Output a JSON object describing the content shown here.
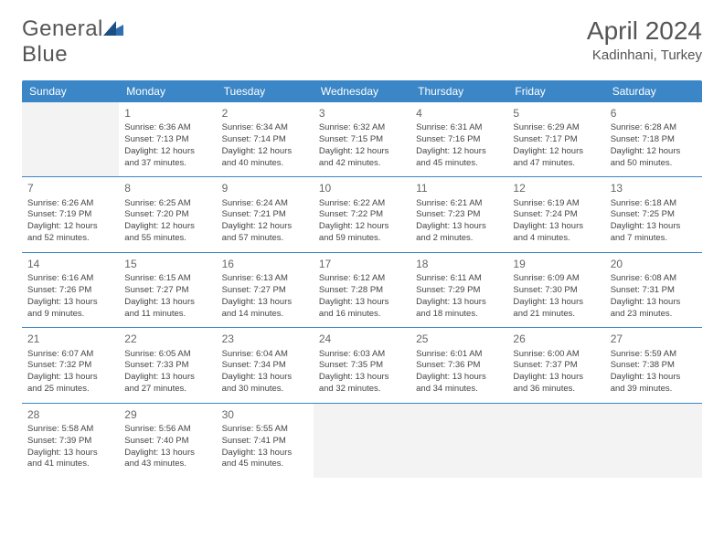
{
  "logo": {
    "text_a": "General",
    "text_b": "Blue",
    "mark_color": "#2f6fb0"
  },
  "title": "April 2024",
  "location": "Kadinhani, Turkey",
  "colors": {
    "header_bg": "#3b86c6",
    "header_text": "#ffffff",
    "rule": "#3b86c6",
    "empty_bg": "#f3f3f3",
    "body_text": "#444444",
    "title_text": "#555555"
  },
  "day_headers": [
    "Sunday",
    "Monday",
    "Tuesday",
    "Wednesday",
    "Thursday",
    "Friday",
    "Saturday"
  ],
  "weeks": [
    [
      null,
      {
        "n": "1",
        "sr": "Sunrise: 6:36 AM",
        "ss": "Sunset: 7:13 PM",
        "d1": "Daylight: 12 hours",
        "d2": "and 37 minutes."
      },
      {
        "n": "2",
        "sr": "Sunrise: 6:34 AM",
        "ss": "Sunset: 7:14 PM",
        "d1": "Daylight: 12 hours",
        "d2": "and 40 minutes."
      },
      {
        "n": "3",
        "sr": "Sunrise: 6:32 AM",
        "ss": "Sunset: 7:15 PM",
        "d1": "Daylight: 12 hours",
        "d2": "and 42 minutes."
      },
      {
        "n": "4",
        "sr": "Sunrise: 6:31 AM",
        "ss": "Sunset: 7:16 PM",
        "d1": "Daylight: 12 hours",
        "d2": "and 45 minutes."
      },
      {
        "n": "5",
        "sr": "Sunrise: 6:29 AM",
        "ss": "Sunset: 7:17 PM",
        "d1": "Daylight: 12 hours",
        "d2": "and 47 minutes."
      },
      {
        "n": "6",
        "sr": "Sunrise: 6:28 AM",
        "ss": "Sunset: 7:18 PM",
        "d1": "Daylight: 12 hours",
        "d2": "and 50 minutes."
      }
    ],
    [
      {
        "n": "7",
        "sr": "Sunrise: 6:26 AM",
        "ss": "Sunset: 7:19 PM",
        "d1": "Daylight: 12 hours",
        "d2": "and 52 minutes."
      },
      {
        "n": "8",
        "sr": "Sunrise: 6:25 AM",
        "ss": "Sunset: 7:20 PM",
        "d1": "Daylight: 12 hours",
        "d2": "and 55 minutes."
      },
      {
        "n": "9",
        "sr": "Sunrise: 6:24 AM",
        "ss": "Sunset: 7:21 PM",
        "d1": "Daylight: 12 hours",
        "d2": "and 57 minutes."
      },
      {
        "n": "10",
        "sr": "Sunrise: 6:22 AM",
        "ss": "Sunset: 7:22 PM",
        "d1": "Daylight: 12 hours",
        "d2": "and 59 minutes."
      },
      {
        "n": "11",
        "sr": "Sunrise: 6:21 AM",
        "ss": "Sunset: 7:23 PM",
        "d1": "Daylight: 13 hours",
        "d2": "and 2 minutes."
      },
      {
        "n": "12",
        "sr": "Sunrise: 6:19 AM",
        "ss": "Sunset: 7:24 PM",
        "d1": "Daylight: 13 hours",
        "d2": "and 4 minutes."
      },
      {
        "n": "13",
        "sr": "Sunrise: 6:18 AM",
        "ss": "Sunset: 7:25 PM",
        "d1": "Daylight: 13 hours",
        "d2": "and 7 minutes."
      }
    ],
    [
      {
        "n": "14",
        "sr": "Sunrise: 6:16 AM",
        "ss": "Sunset: 7:26 PM",
        "d1": "Daylight: 13 hours",
        "d2": "and 9 minutes."
      },
      {
        "n": "15",
        "sr": "Sunrise: 6:15 AM",
        "ss": "Sunset: 7:27 PM",
        "d1": "Daylight: 13 hours",
        "d2": "and 11 minutes."
      },
      {
        "n": "16",
        "sr": "Sunrise: 6:13 AM",
        "ss": "Sunset: 7:27 PM",
        "d1": "Daylight: 13 hours",
        "d2": "and 14 minutes."
      },
      {
        "n": "17",
        "sr": "Sunrise: 6:12 AM",
        "ss": "Sunset: 7:28 PM",
        "d1": "Daylight: 13 hours",
        "d2": "and 16 minutes."
      },
      {
        "n": "18",
        "sr": "Sunrise: 6:11 AM",
        "ss": "Sunset: 7:29 PM",
        "d1": "Daylight: 13 hours",
        "d2": "and 18 minutes."
      },
      {
        "n": "19",
        "sr": "Sunrise: 6:09 AM",
        "ss": "Sunset: 7:30 PM",
        "d1": "Daylight: 13 hours",
        "d2": "and 21 minutes."
      },
      {
        "n": "20",
        "sr": "Sunrise: 6:08 AM",
        "ss": "Sunset: 7:31 PM",
        "d1": "Daylight: 13 hours",
        "d2": "and 23 minutes."
      }
    ],
    [
      {
        "n": "21",
        "sr": "Sunrise: 6:07 AM",
        "ss": "Sunset: 7:32 PM",
        "d1": "Daylight: 13 hours",
        "d2": "and 25 minutes."
      },
      {
        "n": "22",
        "sr": "Sunrise: 6:05 AM",
        "ss": "Sunset: 7:33 PM",
        "d1": "Daylight: 13 hours",
        "d2": "and 27 minutes."
      },
      {
        "n": "23",
        "sr": "Sunrise: 6:04 AM",
        "ss": "Sunset: 7:34 PM",
        "d1": "Daylight: 13 hours",
        "d2": "and 30 minutes."
      },
      {
        "n": "24",
        "sr": "Sunrise: 6:03 AM",
        "ss": "Sunset: 7:35 PM",
        "d1": "Daylight: 13 hours",
        "d2": "and 32 minutes."
      },
      {
        "n": "25",
        "sr": "Sunrise: 6:01 AM",
        "ss": "Sunset: 7:36 PM",
        "d1": "Daylight: 13 hours",
        "d2": "and 34 minutes."
      },
      {
        "n": "26",
        "sr": "Sunrise: 6:00 AM",
        "ss": "Sunset: 7:37 PM",
        "d1": "Daylight: 13 hours",
        "d2": "and 36 minutes."
      },
      {
        "n": "27",
        "sr": "Sunrise: 5:59 AM",
        "ss": "Sunset: 7:38 PM",
        "d1": "Daylight: 13 hours",
        "d2": "and 39 minutes."
      }
    ],
    [
      {
        "n": "28",
        "sr": "Sunrise: 5:58 AM",
        "ss": "Sunset: 7:39 PM",
        "d1": "Daylight: 13 hours",
        "d2": "and 41 minutes."
      },
      {
        "n": "29",
        "sr": "Sunrise: 5:56 AM",
        "ss": "Sunset: 7:40 PM",
        "d1": "Daylight: 13 hours",
        "d2": "and 43 minutes."
      },
      {
        "n": "30",
        "sr": "Sunrise: 5:55 AM",
        "ss": "Sunset: 7:41 PM",
        "d1": "Daylight: 13 hours",
        "d2": "and 45 minutes."
      },
      null,
      null,
      null,
      null
    ]
  ]
}
